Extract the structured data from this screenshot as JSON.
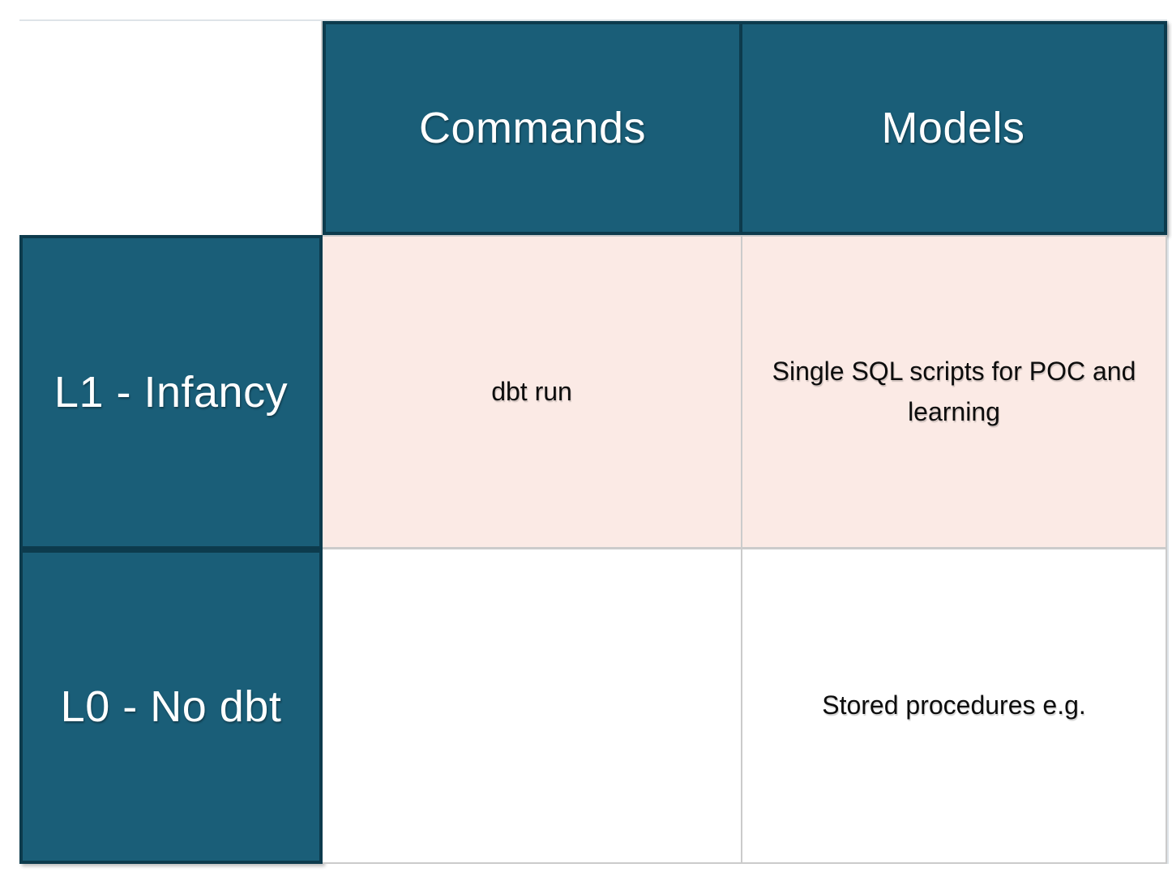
{
  "colors": {
    "teal": "#1A5E78",
    "teal_border": "#0D3B4D",
    "pink": "#FBEAE5",
    "grid_line": "#CBCBCB",
    "outer_line": "#DEE4E8",
    "header_text": "#FFFFFF",
    "body_text": "#0D0D0D"
  },
  "table": {
    "column_headers": [
      "Commands",
      "Models"
    ],
    "row_headers": [
      "L1 - Infancy",
      "L0 - No dbt"
    ],
    "rows": [
      {
        "level": "L1 - Infancy",
        "commands": "dbt run",
        "models": "Single SQL scripts for POC and learning"
      },
      {
        "level": "L0 - No dbt",
        "commands": "",
        "models": "Stored procedures e.g."
      }
    ]
  }
}
